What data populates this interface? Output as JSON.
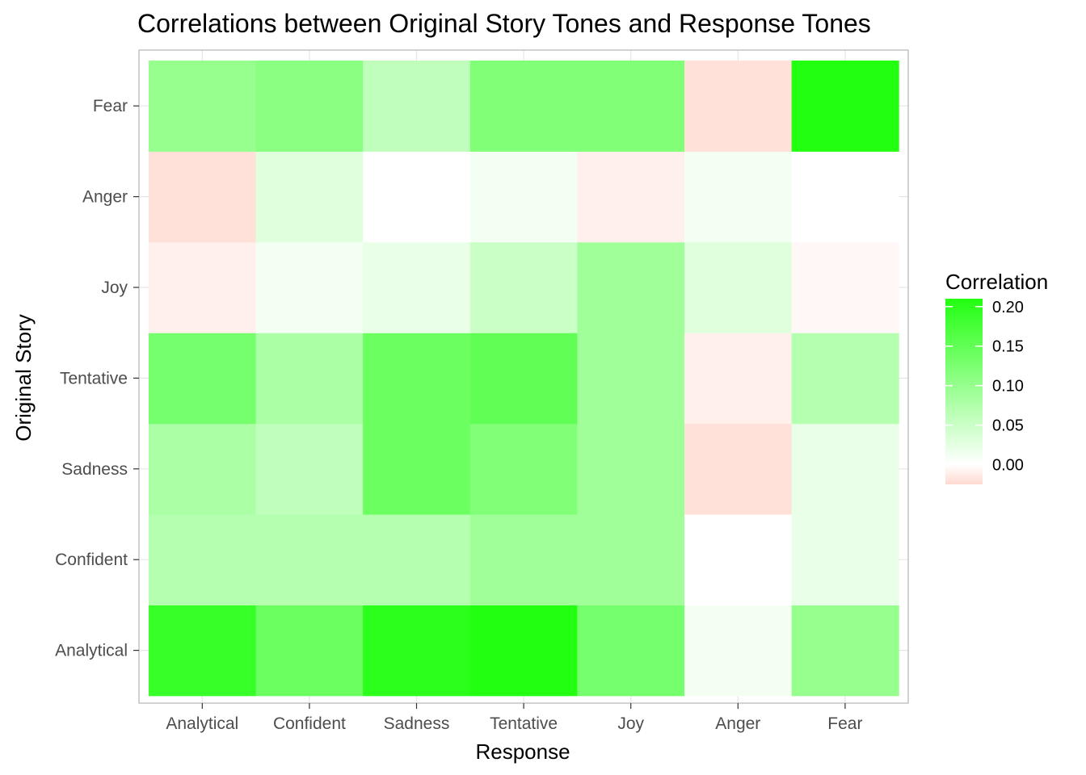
{
  "chart_data": {
    "type": "heatmap",
    "title": "Correlations between Original Story Tones and Response Tones",
    "xlabel": "Response",
    "ylabel": "Original Story",
    "x_categories": [
      "Analytical",
      "Confident",
      "Sadness",
      "Tentative",
      "Joy",
      "Anger",
      "Fear"
    ],
    "y_categories": [
      "Analytical",
      "Confident",
      "Sadness",
      "Tentative",
      "Joy",
      "Anger",
      "Fear"
    ],
    "values": [
      [
        0.19,
        0.14,
        0.2,
        0.21,
        0.13,
        0.01,
        0.1
      ],
      [
        0.07,
        0.07,
        0.07,
        0.09,
        0.09,
        0.0,
        0.02
      ],
      [
        0.08,
        0.06,
        0.14,
        0.12,
        0.09,
        -0.02,
        0.02
      ],
      [
        0.13,
        0.08,
        0.14,
        0.15,
        0.09,
        -0.01,
        0.07
      ],
      [
        -0.01,
        0.01,
        0.02,
        0.05,
        0.09,
        0.03,
        -0.005
      ],
      [
        -0.02,
        0.03,
        0.0,
        0.01,
        -0.01,
        0.01,
        0.0
      ],
      [
        0.1,
        0.11,
        0.06,
        0.12,
        0.12,
        -0.02,
        0.21
      ]
    ],
    "legend": {
      "title": "Correlation",
      "breaks": [
        "0.20",
        "0.15",
        "0.10",
        "0.05",
        "0.00"
      ],
      "range": [
        -0.025,
        0.21
      ],
      "position": "right"
    },
    "colors": {
      "low": "#ffdad0",
      "mid": "#ffffff",
      "high": "#22ff11",
      "panel_border": "#b3b3b3",
      "grid": "#e6e6e6"
    },
    "grid": true
  }
}
